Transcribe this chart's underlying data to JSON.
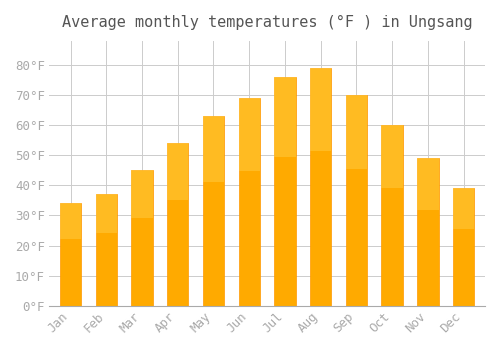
{
  "title": "Average monthly temperatures (°F ) in Ungsang",
  "months": [
    "Jan",
    "Feb",
    "Mar",
    "Apr",
    "May",
    "Jun",
    "Jul",
    "Aug",
    "Sep",
    "Oct",
    "Nov",
    "Dec"
  ],
  "values": [
    34,
    37,
    45,
    54,
    63,
    69,
    76,
    79,
    70,
    60,
    49,
    39
  ],
  "bar_color": "#FFAA00",
  "bar_edge_color": "#FF9900",
  "background_color": "#FFFFFF",
  "grid_color": "#CCCCCC",
  "tick_label_color": "#AAAAAA",
  "title_color": "#555555",
  "ylim": [
    0,
    88
  ],
  "yticks": [
    0,
    10,
    20,
    30,
    40,
    50,
    60,
    70,
    80
  ],
  "title_fontsize": 11,
  "tick_fontsize": 9
}
